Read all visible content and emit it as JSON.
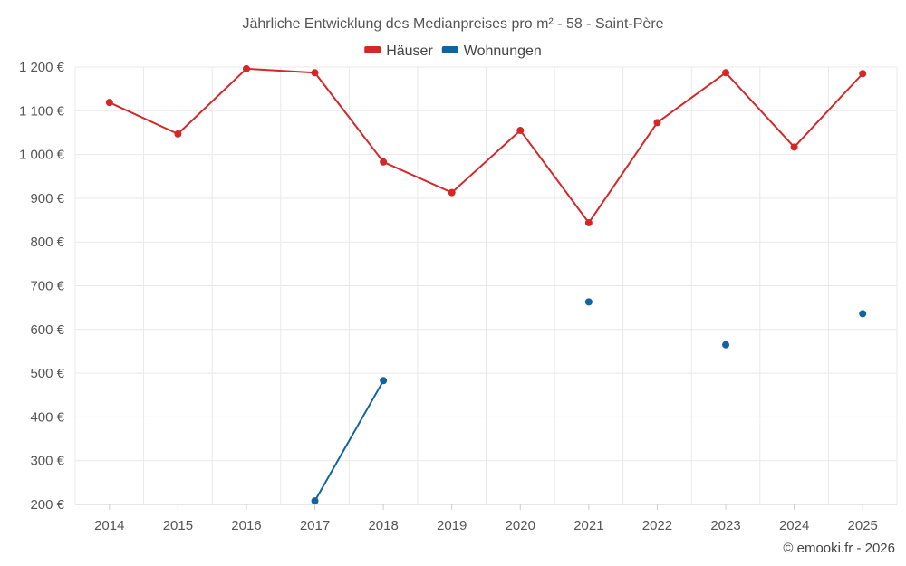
{
  "chart_data": {
    "type": "line",
    "title": "Jährliche Entwicklung des Medianpreises pro m² - 58 - Saint-Père",
    "xlabel": "",
    "ylabel": "",
    "categories": [
      "2014",
      "2015",
      "2016",
      "2017",
      "2018",
      "2019",
      "2020",
      "2021",
      "2022",
      "2023",
      "2024",
      "2025"
    ],
    "ylim": [
      200,
      1200
    ],
    "yticks": [
      200,
      300,
      400,
      500,
      600,
      700,
      800,
      900,
      1000,
      1100,
      1200
    ],
    "ytick_labels": [
      "200 €",
      "300 €",
      "400 €",
      "500 €",
      "600 €",
      "700 €",
      "800 €",
      "900 €",
      "1 000 €",
      "1 100 €",
      "1 200 €"
    ],
    "grid": true,
    "legend_position": "top-center",
    "series": [
      {
        "name": "Häuser",
        "color": "#d62728",
        "values": [
          1119,
          1047,
          1196,
          1187,
          983,
          913,
          1055,
          844,
          1073,
          1187,
          1017,
          1185
        ]
      },
      {
        "name": "Wohnungen",
        "color": "#1065a0",
        "values": [
          null,
          null,
          null,
          208,
          483,
          null,
          null,
          663,
          null,
          565,
          null,
          636
        ]
      }
    ]
  },
  "credit": "© emooki.fr - 2026"
}
